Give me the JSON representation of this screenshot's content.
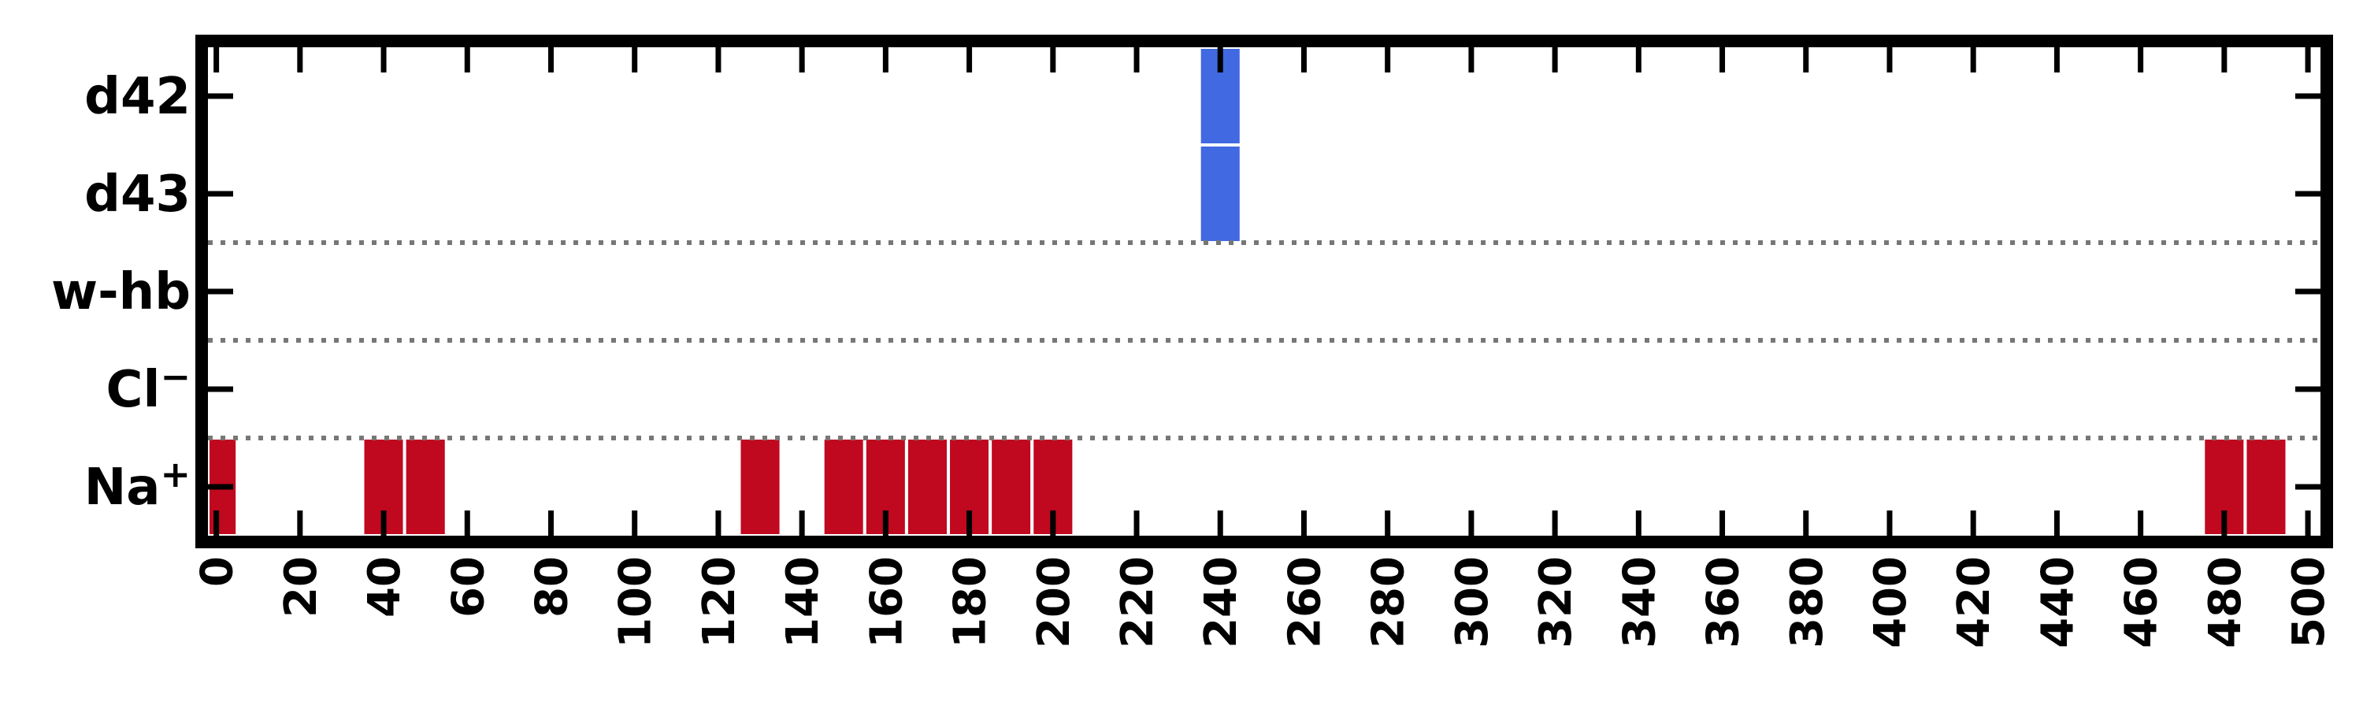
{
  "chart_data": {
    "type": "heatmap",
    "title": "",
    "xlabel": "",
    "ylabel": "",
    "xlim": [
      -2,
      503
    ],
    "x_ticks": [
      0,
      20,
      40,
      60,
      80,
      100,
      120,
      140,
      160,
      180,
      200,
      220,
      240,
      260,
      280,
      300,
      320,
      340,
      360,
      380,
      400,
      420,
      440,
      460,
      480,
      500
    ],
    "categories": [
      {
        "key": "d42",
        "label": "d42",
        "sup": ""
      },
      {
        "key": "d43",
        "label": "d43",
        "sup": ""
      },
      {
        "key": "w-hb",
        "label": "w-hb",
        "sup": ""
      },
      {
        "key": "Cl",
        "label": "Cl",
        "sup": "−"
      },
      {
        "key": "Na",
        "label": "Na",
        "sup": "+"
      }
    ],
    "separators_after_category": [
      "d43",
      "w-hb",
      "Cl"
    ],
    "separator_style": "dotted",
    "grid": false,
    "bin_width": 10,
    "series": [
      {
        "name": "d42",
        "color": "#4169E1",
        "start_times": [
          235
        ]
      },
      {
        "name": "d43",
        "color": "#4169E1",
        "start_times": [
          235
        ]
      },
      {
        "name": "w-hb",
        "color": "#4169E1",
        "start_times": []
      },
      {
        "name": "Cl",
        "color": "#C0081F",
        "start_times": []
      },
      {
        "name": "Na",
        "color": "#C0081F",
        "start_times": [
          -5,
          35,
          45,
          125,
          145,
          155,
          165,
          175,
          185,
          195,
          475,
          485
        ]
      }
    ]
  }
}
